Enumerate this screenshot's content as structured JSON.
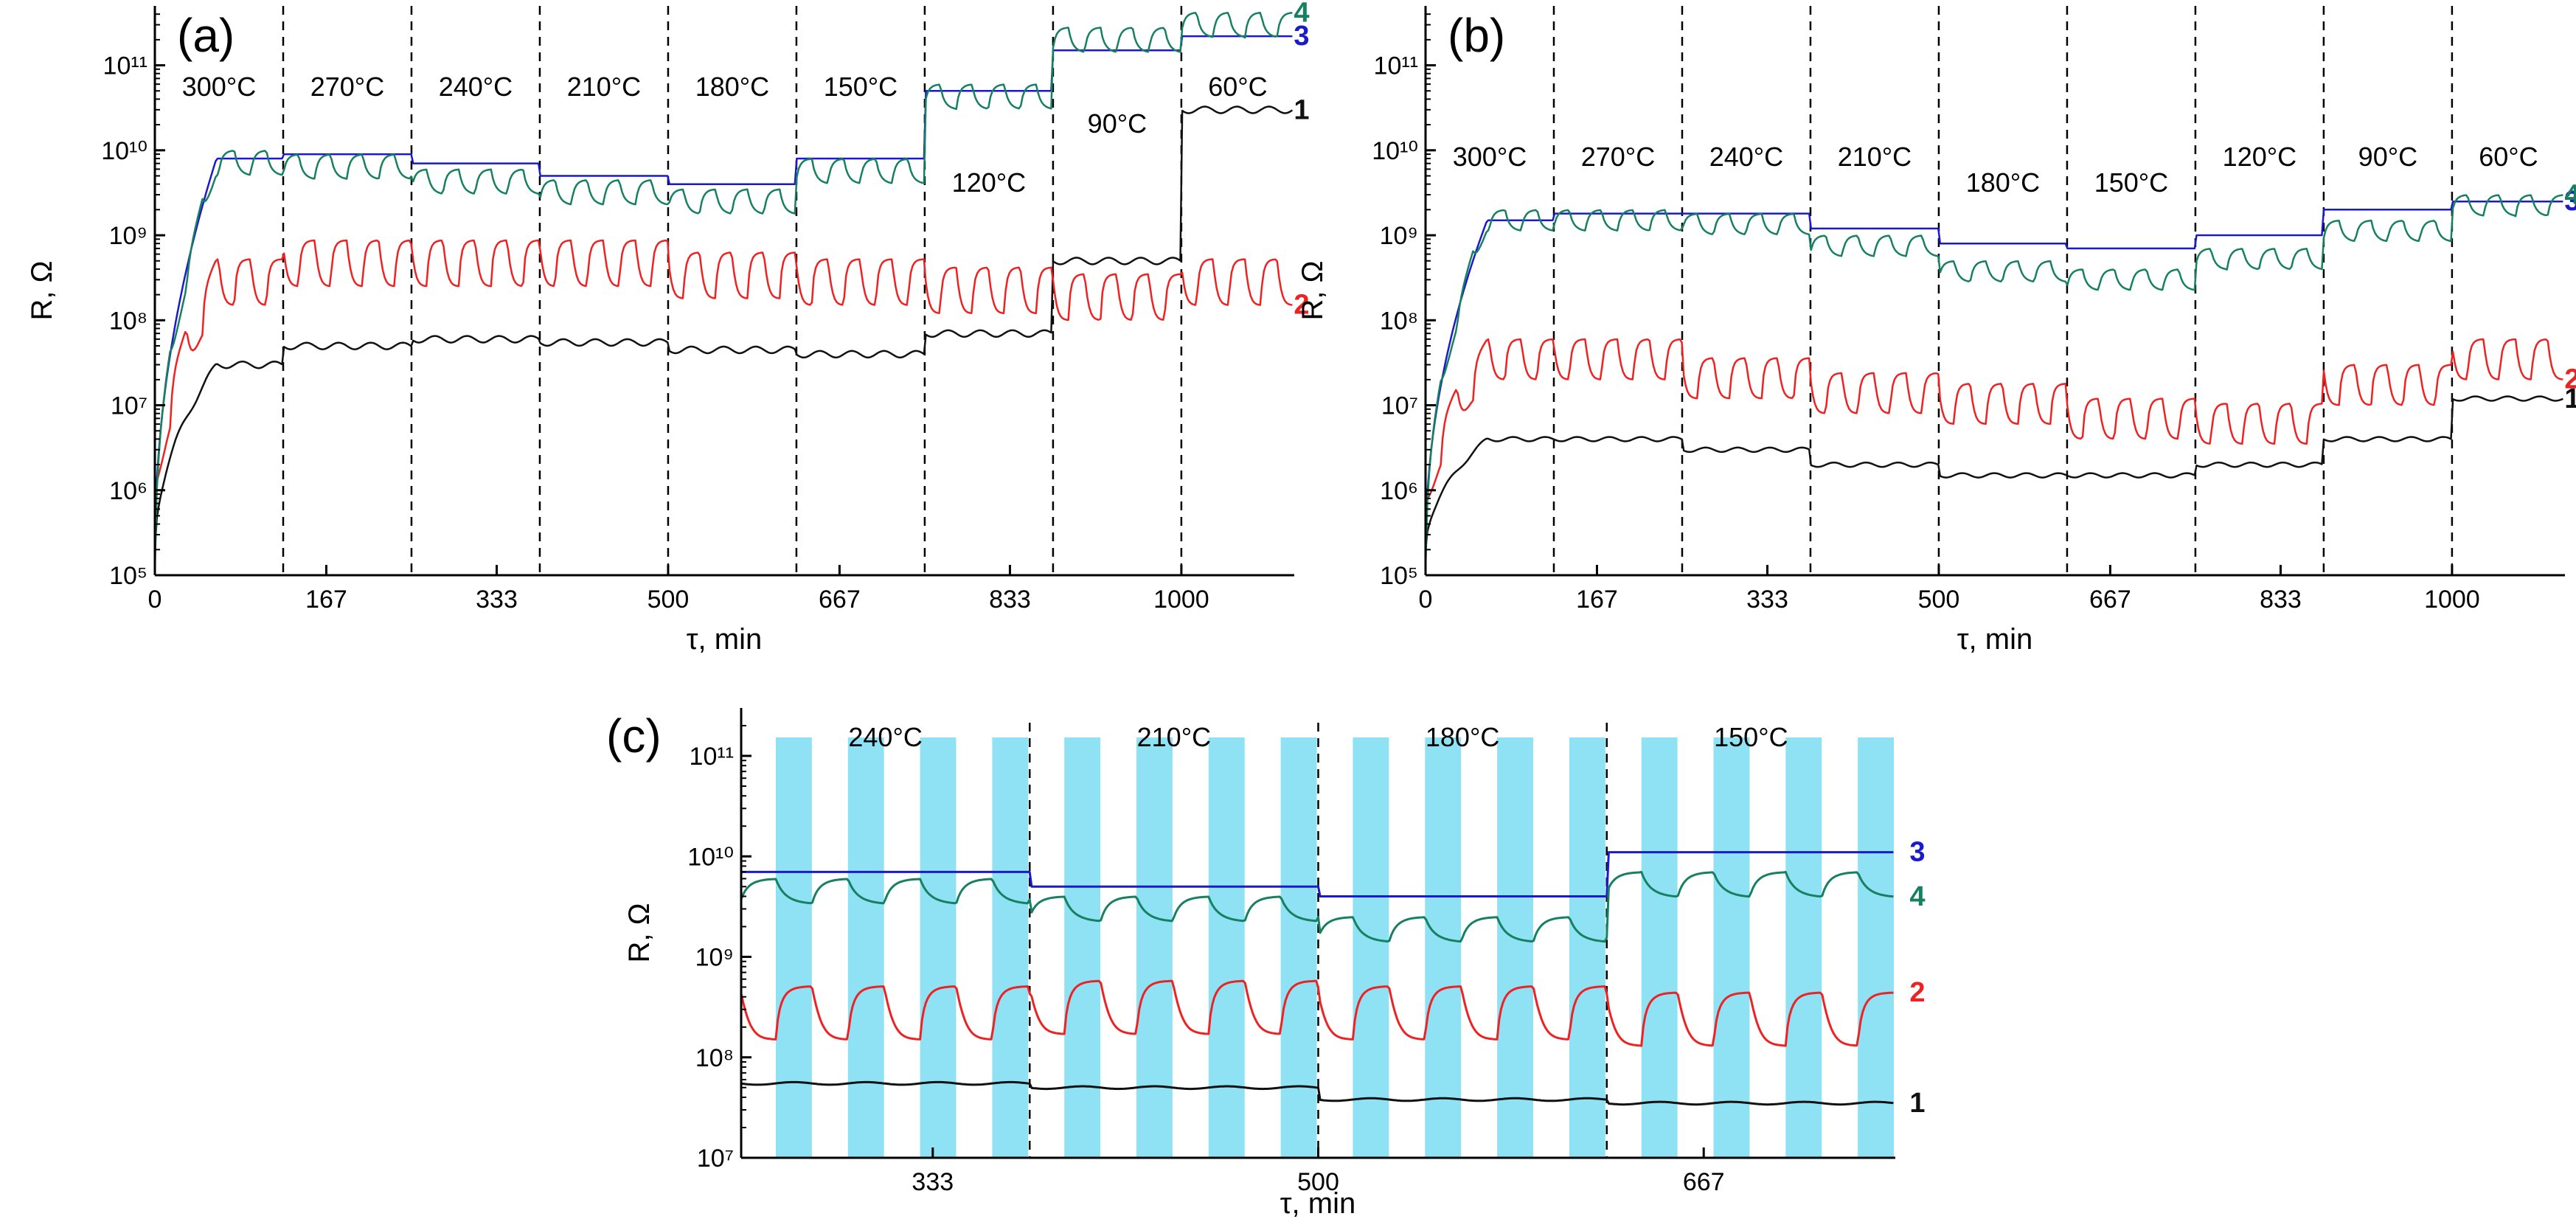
{
  "colors": {
    "s1": "#111111",
    "s2": "#ee2222",
    "s3": "#1a1acc",
    "s4": "#168060",
    "uv_band": "#8ee2f4"
  },
  "chart_data": [
    {
      "id": "a",
      "type": "line",
      "panel_label": "(a)",
      "xlabel": "τ, min",
      "ylabel": "R, Ω",
      "y_scale": "log",
      "xlim": [
        0,
        1110
      ],
      "ylim": [
        100000,
        500000000000
      ],
      "x_ticks": [
        0,
        167,
        333,
        500,
        667,
        833,
        1000
      ],
      "y_tick_labels": [
        "10⁵",
        "10⁶",
        "10⁷",
        "10⁸",
        "10⁹",
        "10¹⁰",
        "10¹¹"
      ],
      "step_boundaries": [
        125,
        250,
        375,
        500,
        625,
        750,
        875,
        1000
      ],
      "temperatures": [
        "300°C",
        "270°C",
        "240°C",
        "210°C",
        "180°C",
        "150°C",
        "120°C",
        "90°C",
        "60°C"
      ],
      "series": [
        {
          "name": "1",
          "color": "#111111",
          "segment_levels": [
            30000000,
            50000000,
            60000000,
            55000000,
            45000000,
            40000000,
            70000000,
            500000000,
            30000000000
          ],
          "amplitude": 1.3
        },
        {
          "name": "2",
          "color": "#ee2222",
          "segment_levels": [
            150000000,
            250000000,
            250000000,
            250000000,
            180000000,
            150000000,
            120000000,
            100000000,
            150000000
          ],
          "amplitude": 3.5
        },
        {
          "name": "3",
          "color": "#1a1acc",
          "segment_levels": [
            8000000000,
            9000000000,
            7000000000,
            5000000000,
            4000000000,
            8000000000,
            50000000000,
            150000000000,
            220000000000
          ],
          "amplitude": 1.0
        },
        {
          "name": "4",
          "color": "#168060",
          "segment_levels": [
            10000000000,
            9000000000,
            6000000000,
            4500000000,
            3500000000,
            8000000000,
            60000000000,
            280000000000,
            420000000000
          ],
          "amplitude": 2.0
        }
      ]
    },
    {
      "id": "b",
      "type": "line",
      "panel_label": "(b)",
      "xlabel": "τ, min",
      "ylabel": "R, Ω",
      "y_scale": "log",
      "xlim": [
        0,
        1110
      ],
      "ylim": [
        100000,
        500000000000
      ],
      "x_ticks": [
        0,
        167,
        333,
        500,
        667,
        833,
        1000
      ],
      "y_tick_labels": [
        "10⁵",
        "10⁶",
        "10⁷",
        "10⁸",
        "10⁹",
        "10¹⁰",
        "10¹¹"
      ],
      "step_boundaries": [
        125,
        250,
        375,
        500,
        625,
        750,
        875,
        1000
      ],
      "temperatures": [
        "300°C",
        "270°C",
        "240°C",
        "210°C",
        "180°C",
        "150°C",
        "120°C",
        "90°C",
        "60°C"
      ],
      "series": [
        {
          "name": "1",
          "color": "#111111",
          "segment_levels": [
            4000000,
            4000000,
            3000000,
            2000000,
            1500000,
            1500000,
            2000000,
            4000000,
            12000000
          ],
          "amplitude": 1.2
        },
        {
          "name": "2",
          "color": "#ee2222",
          "segment_levels": [
            20000000,
            20000000,
            12000000,
            8000000,
            6000000,
            4000000,
            3500000,
            10000000,
            20000000
          ],
          "amplitude": 3.0
        },
        {
          "name": "3",
          "color": "#1a1acc",
          "segment_levels": [
            1500000000,
            1800000000,
            1800000000,
            1200000000,
            800000000,
            700000000,
            1000000000,
            2000000000,
            2500000000
          ],
          "amplitude": 1.0
        },
        {
          "name": "4",
          "color": "#168060",
          "segment_levels": [
            2000000000,
            2000000000,
            1800000000,
            1000000000,
            500000000,
            400000000,
            700000000,
            1500000000,
            3000000000
          ],
          "amplitude": 1.8
        }
      ]
    },
    {
      "id": "c",
      "type": "line",
      "panel_label": "(c)",
      "xlabel": "τ, min",
      "ylabel": "R, Ω",
      "y_scale": "log",
      "xlim": [
        250,
        750
      ],
      "ylim": [
        10000000,
        300000000000
      ],
      "x_ticks": [
        333,
        500,
        667
      ],
      "y_tick_labels": [
        "10⁷",
        "10⁸",
        "10⁹",
        "10¹⁰",
        "10¹¹"
      ],
      "step_boundaries": [
        375,
        500,
        625
      ],
      "temperatures": [
        "240°C",
        "210°C",
        "180°C",
        "150°C"
      ],
      "uv_period_min": 31.25,
      "uv_on_min": 15.625,
      "series": [
        {
          "name": "1",
          "color": "#111111",
          "segment_levels": [
            55000000,
            50000000,
            38000000,
            35000000
          ],
          "amplitude": 1.1
        },
        {
          "name": "2",
          "color": "#ee2222",
          "segment_levels": [
            150000000,
            170000000,
            150000000,
            130000000
          ],
          "amplitude": 3.4
        },
        {
          "name": "3",
          "color": "#1a1acc",
          "segment_levels": [
            7000000000,
            5000000000,
            4000000000,
            11000000000
          ],
          "amplitude": 1.0
        },
        {
          "name": "4",
          "color": "#168060",
          "segment_levels": [
            6000000000,
            4000000000,
            2500000000,
            7000000000
          ],
          "amplitude": 1.8
        }
      ]
    }
  ]
}
